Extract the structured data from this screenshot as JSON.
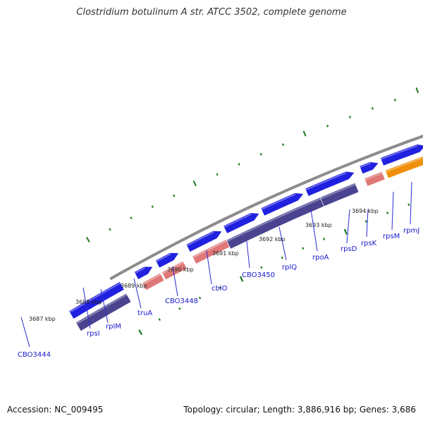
{
  "title": "Clostridium botulinum A str. ATCC 3502, complete genome",
  "footer": {
    "accession": "Accession: NC_009495",
    "summary": "Topology: circular; Length: 3,886,916 bp; Genes: 3,686"
  },
  "colors": {
    "backbone": "#8c8c8c",
    "gene_forward": "#2020e0",
    "gene_reverse": "#4a4490",
    "rrna_like": "#e07878",
    "highlight": "#f0900a",
    "tick": "#1e7a1e",
    "label_line": "#2a2ad0"
  },
  "scale": {
    "ticks": [
      {
        "label": "3687 kbp"
      },
      {
        "label": "3688 kbp"
      },
      {
        "label": "3689 kbp"
      },
      {
        "label": "3690 kbp"
      },
      {
        "label": "3691 kbp"
      },
      {
        "label": "3692 kbp"
      },
      {
        "label": "3693 kbp"
      },
      {
        "label": "3694 kbp"
      }
    ]
  },
  "genes": [
    {
      "label": "CBO3444"
    },
    {
      "label": "rpsI"
    },
    {
      "label": "rplM"
    },
    {
      "label": "truA"
    },
    {
      "label": "CBO3448"
    },
    {
      "label": "cbiO"
    },
    {
      "label": "CBO3450"
    },
    {
      "label": "rplQ"
    },
    {
      "label": "rpoA"
    },
    {
      "label": "rpsD"
    },
    {
      "label": "rpsK"
    },
    {
      "label": "rpsM"
    },
    {
      "label": "rpmJ"
    }
  ]
}
